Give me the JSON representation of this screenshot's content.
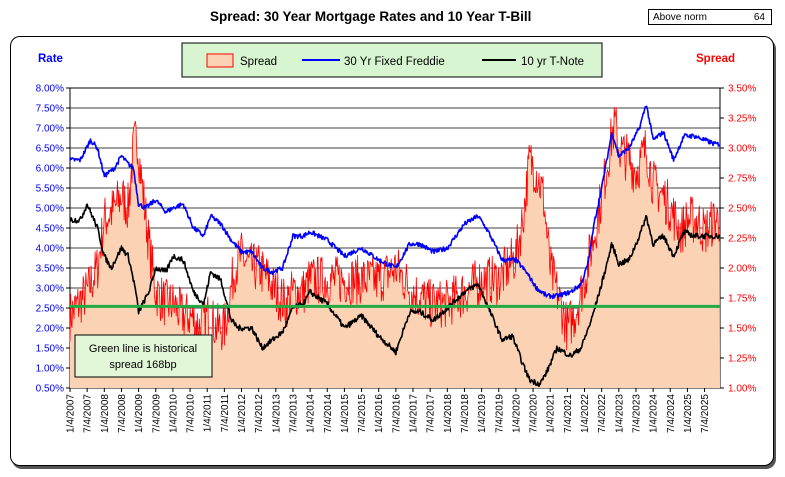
{
  "title": "Spread:  30 Year Mortgage Rates and 10 Year T-Bill",
  "norm_box": {
    "label": "Above norm",
    "value": "64"
  },
  "annotation": {
    "line1": "Green line is historical",
    "line2": "spread 168bp"
  },
  "chart_data": {
    "type": "line",
    "left_axis": {
      "label": "Rate",
      "min": 0.5,
      "max": 8.0,
      "step": 0.5,
      "ticks": [
        "0.50%",
        "1.00%",
        "1.50%",
        "2.00%",
        "2.50%",
        "3.00%",
        "3.50%",
        "4.00%",
        "4.50%",
        "5.00%",
        "5.50%",
        "6.00%",
        "6.50%",
        "7.00%",
        "7.50%",
        "8.00%"
      ]
    },
    "right_axis": {
      "label": "Spread",
      "min": 1.0,
      "max": 3.5,
      "step": 0.25,
      "ticks": [
        "1.00%",
        "1.25%",
        "1.50%",
        "1.75%",
        "2.00%",
        "2.25%",
        "2.50%",
        "2.75%",
        "3.00%",
        "3.25%",
        "3.50%"
      ]
    },
    "x_tick_labels": [
      "1/4/2007",
      "7/4/2007",
      "1/4/2008",
      "7/4/2008",
      "1/4/2009",
      "7/4/2009",
      "1/4/2010",
      "7/4/2010",
      "1/4/2011",
      "7/4/2011",
      "1/4/2012",
      "7/4/2012",
      "1/4/2013",
      "7/4/2013",
      "1/4/2014",
      "7/4/2014",
      "1/4/2015",
      "7/4/2015",
      "1/4/2016",
      "7/4/2016",
      "1/4/2017",
      "7/4/2017",
      "1/4/2018",
      "7/4/2018",
      "1/4/2019",
      "7/4/2019",
      "1/4/2020",
      "7/4/2020",
      "1/4/2021",
      "7/4/2021",
      "1/4/2022",
      "7/4/2022",
      "1/4/2023",
      "7/4/2023",
      "1/4/2024",
      "7/4/2024",
      "1/4/2025",
      "7/4/2025"
    ],
    "grid": true,
    "legend": {
      "placement": "top-center"
    },
    "historical_spread": 1.68,
    "colors": {
      "spread_fill": "#fbd3b4",
      "spread_line": "#ff0000",
      "mortgage": "#0000ff",
      "tnote": "#000000",
      "historical": "#22aa44",
      "legend_bg": "#d7f5d0",
      "annotation_bg": "#e1f7d8",
      "left_label": "#0000ff",
      "right_label": "#ff0000"
    },
    "series": [
      {
        "name": "Spread",
        "axis": "right",
        "x": [
          2007.0,
          2007.5,
          2007.8,
          2008.0,
          2008.3,
          2008.5,
          2008.7,
          2008.85,
          2008.95,
          2009.1,
          2009.3,
          2009.5,
          2009.8,
          2010.0,
          2010.3,
          2010.5,
          2010.8,
          2011.0,
          2011.3,
          2011.5,
          2011.8,
          2012.0,
          2012.3,
          2012.5,
          2012.8,
          2013.0,
          2013.3,
          2013.5,
          2013.8,
          2014.0,
          2014.5,
          2015.0,
          2015.5,
          2016.0,
          2016.5,
          2017.0,
          2017.5,
          2018.0,
          2018.5,
          2019.0,
          2019.5,
          2020.0,
          2020.2,
          2020.4,
          2020.6,
          2020.8,
          2021.0,
          2021.3,
          2021.5,
          2021.7,
          2022.0,
          2022.3,
          2022.5,
          2022.8,
          2022.9,
          2023.0,
          2023.3,
          2023.5,
          2023.8,
          2024.0,
          2024.3,
          2024.5,
          2024.8,
          2025.0,
          2025.3,
          2025.5,
          2025.8
        ],
        "y": [
          1.6,
          1.8,
          2.0,
          2.4,
          2.5,
          2.6,
          2.5,
          3.0,
          3.1,
          2.7,
          2.2,
          1.8,
          1.7,
          1.7,
          1.6,
          1.6,
          1.5,
          1.6,
          1.5,
          1.5,
          2.0,
          2.1,
          2.0,
          2.0,
          1.9,
          1.8,
          1.7,
          1.8,
          1.8,
          1.9,
          1.9,
          1.9,
          1.9,
          1.9,
          2.0,
          1.8,
          1.7,
          1.7,
          1.8,
          1.9,
          1.9,
          2.1,
          2.4,
          2.9,
          2.8,
          2.6,
          2.0,
          1.7,
          1.5,
          1.6,
          1.9,
          2.3,
          2.6,
          3.1,
          3.2,
          3.0,
          2.9,
          2.8,
          3.0,
          2.7,
          2.6,
          2.5,
          2.3,
          2.4,
          2.4,
          2.3,
          2.4
        ]
      },
      {
        "name": "30 Yr Fixed Freddie",
        "axis": "left",
        "x": [
          2007.0,
          2007.3,
          2007.6,
          2007.8,
          2008.0,
          2008.3,
          2008.5,
          2008.7,
          2008.85,
          2009.0,
          2009.2,
          2009.5,
          2009.8,
          2010.0,
          2010.3,
          2010.6,
          2010.9,
          2011.1,
          2011.4,
          2011.7,
          2012.0,
          2012.3,
          2012.6,
          2012.9,
          2013.2,
          2013.5,
          2013.8,
          2014.0,
          2014.5,
          2015.0,
          2015.5,
          2016.0,
          2016.5,
          2016.9,
          2017.2,
          2017.6,
          2018.0,
          2018.5,
          2018.9,
          2019.2,
          2019.6,
          2020.0,
          2020.3,
          2020.6,
          2020.9,
          2021.2,
          2021.6,
          2021.9,
          2022.1,
          2022.3,
          2022.5,
          2022.8,
          2023.0,
          2023.3,
          2023.6,
          2023.8,
          2024.0,
          2024.3,
          2024.6,
          2024.9,
          2025.2,
          2025.5,
          2025.8
        ],
        "y": [
          6.2,
          6.2,
          6.7,
          6.5,
          5.8,
          6.0,
          6.3,
          6.1,
          6.0,
          5.1,
          5.0,
          5.2,
          4.9,
          5.0,
          5.1,
          4.5,
          4.3,
          4.8,
          4.6,
          4.2,
          3.9,
          3.9,
          3.5,
          3.4,
          3.5,
          4.3,
          4.3,
          4.4,
          4.2,
          3.8,
          4.0,
          3.7,
          3.5,
          4.1,
          4.1,
          3.9,
          4.0,
          4.6,
          4.8,
          4.4,
          3.7,
          3.7,
          3.4,
          3.0,
          2.8,
          2.8,
          2.9,
          3.1,
          3.6,
          4.7,
          5.5,
          6.9,
          6.3,
          6.5,
          7.0,
          7.6,
          6.7,
          6.9,
          6.2,
          6.8,
          6.8,
          6.7,
          6.6
        ]
      },
      {
        "name": "10 yr T-Note",
        "axis": "left",
        "x": [
          2007.0,
          2007.3,
          2007.5,
          2007.8,
          2008.0,
          2008.2,
          2008.5,
          2008.7,
          2008.9,
          2009.0,
          2009.3,
          2009.5,
          2009.8,
          2010.0,
          2010.3,
          2010.6,
          2010.9,
          2011.1,
          2011.4,
          2011.7,
          2011.9,
          2012.3,
          2012.6,
          2012.9,
          2013.2,
          2013.5,
          2013.8,
          2014.0,
          2014.5,
          2015.0,
          2015.5,
          2016.0,
          2016.5,
          2016.9,
          2017.2,
          2017.6,
          2018.0,
          2018.5,
          2018.9,
          2019.2,
          2019.6,
          2019.9,
          2020.2,
          2020.4,
          2020.7,
          2020.9,
          2021.2,
          2021.6,
          2021.9,
          2022.2,
          2022.5,
          2022.8,
          2023.0,
          2023.3,
          2023.6,
          2023.8,
          2024.0,
          2024.3,
          2024.6,
          2024.9,
          2025.2,
          2025.5,
          2025.8
        ],
        "y": [
          4.7,
          4.7,
          5.1,
          4.5,
          3.8,
          3.5,
          4.0,
          3.8,
          3.0,
          2.4,
          2.9,
          3.5,
          3.4,
          3.8,
          3.7,
          2.9,
          2.6,
          3.4,
          3.2,
          2.2,
          2.0,
          2.0,
          1.5,
          1.7,
          1.9,
          2.5,
          2.6,
          2.9,
          2.6,
          2.0,
          2.3,
          1.8,
          1.4,
          2.4,
          2.4,
          2.2,
          2.5,
          2.9,
          3.1,
          2.5,
          1.7,
          1.8,
          1.1,
          0.7,
          0.6,
          0.9,
          1.5,
          1.3,
          1.5,
          2.2,
          3.1,
          4.1,
          3.6,
          3.7,
          4.3,
          4.8,
          4.1,
          4.3,
          3.8,
          4.4,
          4.3,
          4.3,
          4.3
        ]
      }
    ]
  }
}
